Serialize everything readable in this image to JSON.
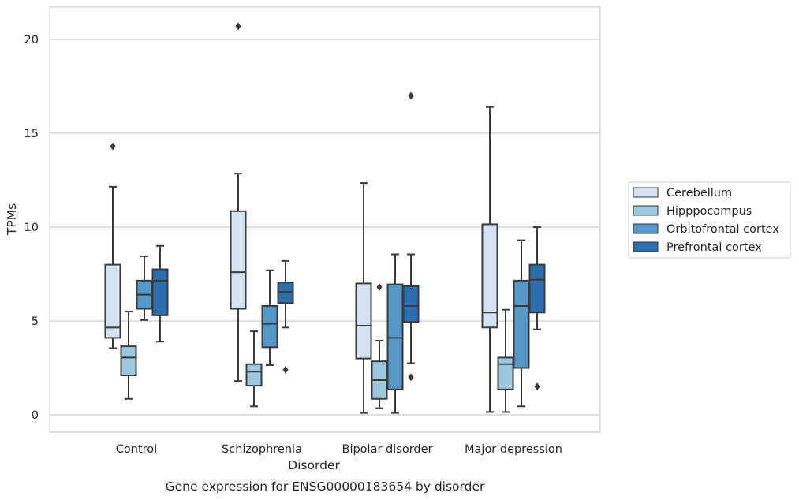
{
  "chart_data": {
    "type": "box",
    "title": "",
    "xlabel": "Disorder",
    "ylabel": "TPMs",
    "caption": "Gene expression for ENSG00000183654 by disorder",
    "ylim": [
      -0.9,
      21.8
    ],
    "yticks": [
      0,
      5,
      10,
      15,
      20
    ],
    "grid": "horizontal",
    "legend_position": "right",
    "categories": [
      "Control",
      "Schizophrenia",
      "Bipolar disorder",
      "Major depression"
    ],
    "series": [
      {
        "name": "Cerebellum",
        "color": "#d5e3f1",
        "boxes": [
          {
            "whisker_low": 3.55,
            "q1": 4.1,
            "median": 4.65,
            "q3": 8.0,
            "whisker_high": 12.15,
            "outliers": [
              14.3
            ]
          },
          {
            "whisker_low": 1.8,
            "q1": 5.65,
            "median": 7.6,
            "q3": 10.85,
            "whisker_high": 12.85,
            "outliers": [
              20.7
            ]
          },
          {
            "whisker_low": 0.1,
            "q1": 3.0,
            "median": 4.75,
            "q3": 7.0,
            "whisker_high": 12.35,
            "outliers": []
          },
          {
            "whisker_low": 0.15,
            "q1": 4.65,
            "median": 5.45,
            "q3": 10.15,
            "whisker_high": 16.4,
            "outliers": []
          }
        ]
      },
      {
        "name": "Hipppocampus",
        "color": "#9dc6df",
        "boxes": [
          {
            "whisker_low": 0.85,
            "q1": 2.1,
            "median": 3.05,
            "q3": 3.65,
            "whisker_high": 5.5,
            "outliers": []
          },
          {
            "whisker_low": 0.45,
            "q1": 1.55,
            "median": 2.3,
            "q3": 2.7,
            "whisker_high": 4.45,
            "outliers": []
          },
          {
            "whisker_low": 0.35,
            "q1": 0.85,
            "median": 1.85,
            "q3": 2.85,
            "whisker_high": 3.95,
            "outliers": [
              6.8
            ]
          },
          {
            "whisker_low": 0.15,
            "q1": 1.35,
            "median": 2.7,
            "q3": 3.05,
            "whisker_high": 5.6,
            "outliers": []
          }
        ]
      },
      {
        "name": "Orbitofrontal cortex",
        "color": "#5597c6",
        "boxes": [
          {
            "whisker_low": 5.05,
            "q1": 5.65,
            "median": 6.4,
            "q3": 7.15,
            "whisker_high": 8.45,
            "outliers": []
          },
          {
            "whisker_low": 2.65,
            "q1": 3.6,
            "median": 4.85,
            "q3": 5.8,
            "whisker_high": 7.7,
            "outliers": []
          },
          {
            "whisker_low": 0.1,
            "q1": 1.35,
            "median": 4.1,
            "q3": 6.95,
            "whisker_high": 8.55,
            "outliers": []
          },
          {
            "whisker_low": 0.45,
            "q1": 2.5,
            "median": 5.8,
            "q3": 7.15,
            "whisker_high": 9.3,
            "outliers": []
          }
        ]
      },
      {
        "name": "Prefrontal cortex",
        "color": "#2d6fae",
        "boxes": [
          {
            "whisker_low": 3.9,
            "q1": 5.3,
            "median": 7.15,
            "q3": 7.75,
            "whisker_high": 9.0,
            "outliers": []
          },
          {
            "whisker_low": 4.65,
            "q1": 5.95,
            "median": 6.55,
            "q3": 7.05,
            "whisker_high": 8.2,
            "outliers": [
              2.4
            ]
          },
          {
            "whisker_low": 2.75,
            "q1": 4.95,
            "median": 5.8,
            "q3": 6.85,
            "whisker_high": 8.55,
            "outliers": [
              17.0,
              2.0
            ]
          },
          {
            "whisker_low": 4.55,
            "q1": 5.45,
            "median": 7.2,
            "q3": 8.0,
            "whisker_high": 10.0,
            "outliers": [
              1.5
            ]
          }
        ]
      }
    ]
  }
}
